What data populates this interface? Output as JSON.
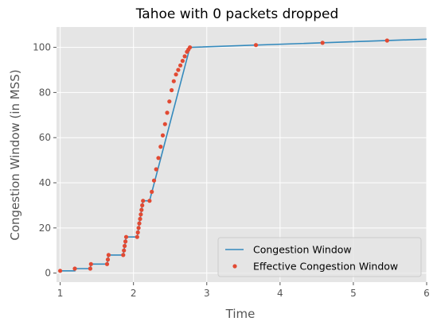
{
  "chart_data": {
    "type": "line",
    "title": "Tahoe with 0 packets dropped",
    "xlabel": "Time",
    "ylabel": "Congestion Window (in MSS)",
    "xlim": [
      0.95,
      6.0
    ],
    "ylim": [
      -4,
      109
    ],
    "xticks": [
      1,
      2,
      3,
      4,
      5,
      6
    ],
    "yticks": [
      0,
      20,
      40,
      60,
      80,
      100
    ],
    "grid": true,
    "legend_position": "bottom-right",
    "colors": {
      "background": "#e5e5e5",
      "grid": "#ffffff",
      "line": "#348abd",
      "points": "#e24a33"
    },
    "series": [
      {
        "name": "Congestion Window",
        "kind": "line",
        "x": [
          1.0,
          1.2,
          1.2,
          1.41,
          1.42,
          1.64,
          1.66,
          1.86,
          1.9,
          2.05,
          2.13,
          2.22,
          2.77,
          6.0
        ],
        "y": [
          1,
          1,
          2,
          2,
          4,
          4,
          8,
          8,
          16,
          16,
          32,
          32,
          100,
          103.6
        ]
      },
      {
        "name": "Effective Congestion Window",
        "kind": "scatter",
        "x": [
          1.0,
          1.2,
          1.41,
          1.42,
          1.64,
          1.65,
          1.66,
          1.86,
          1.87,
          1.88,
          1.89,
          1.9,
          2.05,
          2.06,
          2.07,
          2.08,
          2.09,
          2.1,
          2.11,
          2.12,
          2.13,
          2.22,
          2.25,
          2.28,
          2.31,
          2.34,
          2.37,
          2.4,
          2.43,
          2.46,
          2.49,
          2.52,
          2.55,
          2.58,
          2.61,
          2.64,
          2.67,
          2.7,
          2.73,
          2.75,
          2.77,
          3.67,
          4.58,
          5.46
        ],
        "y": [
          1,
          2,
          2,
          4,
          4,
          6,
          8,
          8,
          10,
          12,
          14,
          16,
          16,
          18,
          20,
          22,
          24,
          26,
          28,
          30,
          32,
          32,
          36,
          41,
          46,
          51,
          56,
          61,
          66,
          71,
          76,
          81,
          85,
          88,
          90,
          92,
          94,
          96,
          98,
          99,
          100,
          101,
          102,
          103
        ]
      }
    ]
  }
}
